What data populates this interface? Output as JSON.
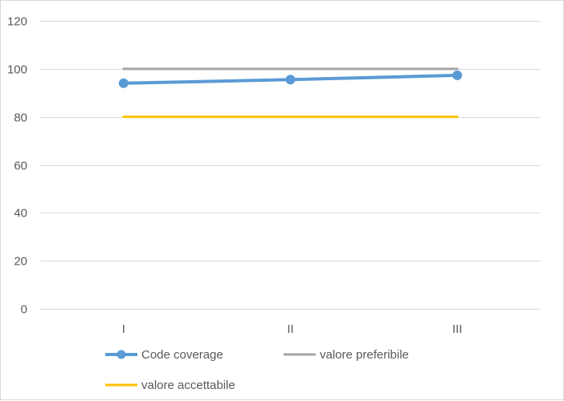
{
  "chart_data": {
    "type": "line",
    "title": "",
    "xlabel": "",
    "ylabel": "",
    "categories": [
      "I",
      "II",
      "III"
    ],
    "ylim": [
      0,
      120
    ],
    "yticks": [
      0,
      20,
      40,
      60,
      80,
      100,
      120
    ],
    "grid": true,
    "legend_position": "bottom",
    "series": [
      {
        "name": "Code coverage",
        "values": [
          94,
          95.5,
          97.3
        ],
        "color": "#5b9bd5",
        "markers": true
      },
      {
        "name": "valore preferibile",
        "values": [
          100,
          100,
          100
        ],
        "color": "#a5a5a5",
        "markers": false
      },
      {
        "name": "valore accettabile",
        "values": [
          80,
          80,
          80
        ],
        "color": "#ffc000",
        "markers": false
      }
    ]
  }
}
